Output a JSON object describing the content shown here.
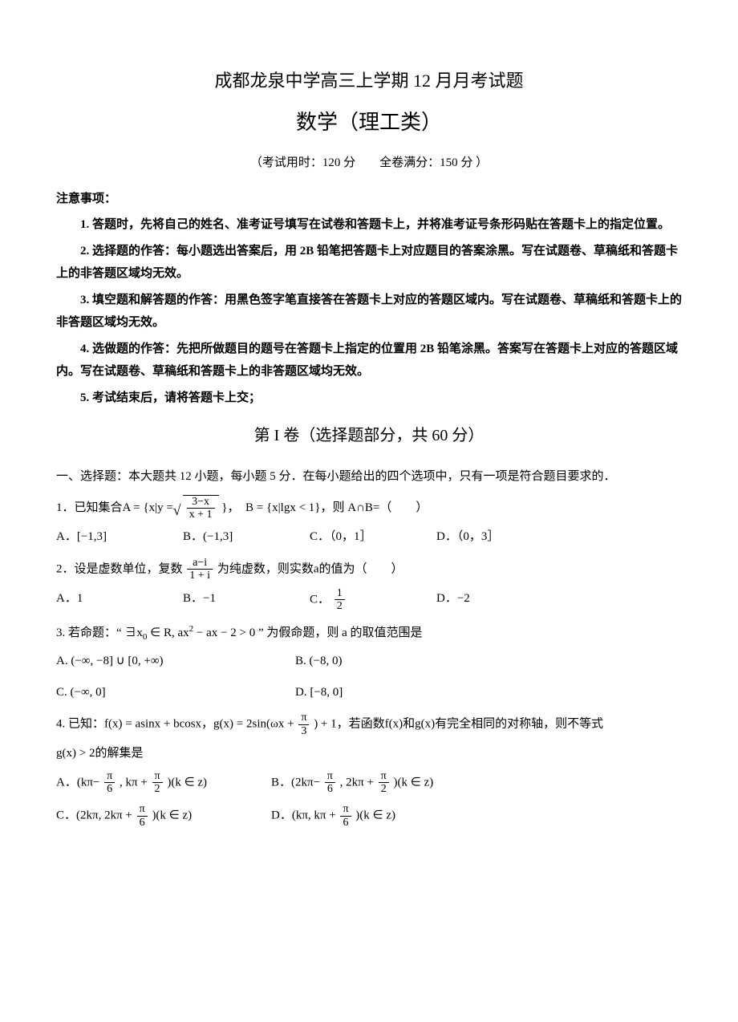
{
  "header": {
    "title1": "成都龙泉中学高三上学期 12 月月考试题",
    "title2": "数学（理工类）",
    "examinfo": "（考试用时：120 分　　全卷满分：150 分 ）"
  },
  "notice_heading": "注意事项：",
  "notices": [
    "1. 答题时，先将自己的姓名、准考证号填写在试卷和答题卡上，并将准考证号条形码贴在答题卡上的指定位置。",
    "2. 选择题的作答：每小题选出答案后，用 2B 铅笔把答题卡上对应题目的答案涂黑。写在试题卷、草稿纸和答题卡上的非答题区域均无效。",
    "3. 填空题和解答题的作答：用黑色签字笔直接答在答题卡上对应的答题区域内。写在试题卷、草稿纸和答题卡上的非答题区域均无效。",
    "4. 选做题的作答：先把所做题目的题号在答题卡上指定的位置用 2B 铅笔涂黑。答案写在答题卡上对应的答题区域内。写在试题卷、草稿纸和答题卡上的非答题区域均无效。",
    "5. 考试结束后，请将答题卡上交；"
  ],
  "section1_title": "第 I 卷（选择题部分，共 60 分）",
  "mc_instruction": "一、选择题：本大题共 12 小题，每小题 5 分．在每小题给出的四个选项中，只有一项是符合题目要求的．",
  "q1": {
    "prefix": "1．已知集合A = {x|y = ",
    "frac_num": "3−x",
    "frac_den": "x + 1",
    "suffix": "}，　B = {x|lgx < 1}，则 A∩B=（　　）",
    "choices": {
      "A": "A．[−1,3]",
      "B": "B．(−1,3]",
      "C": "C．（0，1］",
      "D": "D．（0，3］"
    }
  },
  "q2": {
    "prefix": "2．设是虚数单位，复数",
    "frac_num": "a−i",
    "frac_den": "1 + i",
    "suffix": "为纯虚数，则实数a的值为（　　）",
    "choices": {
      "A": "A．1",
      "B": "B．−1",
      "C_pre": "C．",
      "C_num": "1",
      "C_den": "2",
      "D": "D．−2"
    }
  },
  "q3": {
    "prefix": "3. 若命题：“ ∃x",
    "sub0": "0",
    "mid": " ∈ R, ax",
    "sup2": "2",
    "mid2": " − ax − 2 > 0 ” 为假命题，则 a 的取值范围是",
    "choices": {
      "A": "A. (−∞, −8] ∪ [0, +∞)",
      "B": "B. (−8, 0)",
      "C": "C. (−∞, 0]",
      "D": "D. [−8, 0]"
    }
  },
  "q4": {
    "line1_pre": "4. 已知：f(x) = asinx + bcosx，g(x) = 2sin(ωx + ",
    "line1_num": "π",
    "line1_den": "3",
    "line1_post": ") + 1，若函数f(x)和g(x)有完全相同的对称轴，则不等式",
    "line2": "g(x) > 2的解集是",
    "choices": {
      "A": {
        "pre": "A．(kπ−",
        "n1": "π",
        "d1": "6",
        "mid": ", kπ + ",
        "n2": "π",
        "d2": "2",
        "post": ")(k ∈ z)"
      },
      "B": {
        "pre": "B．(2kπ−",
        "n1": "π",
        "d1": "6",
        "mid": ", 2kπ + ",
        "n2": "π",
        "d2": "2",
        "post": ")(k ∈ z)"
      },
      "C": {
        "pre": "C．(2kπ, 2kπ + ",
        "n1": "π",
        "d1": "6",
        "post": ")(k ∈ z)"
      },
      "D": {
        "pre": "D．(kπ, kπ + ",
        "n1": "π",
        "d1": "6",
        "post": ")(k ∈ z)"
      }
    }
  }
}
